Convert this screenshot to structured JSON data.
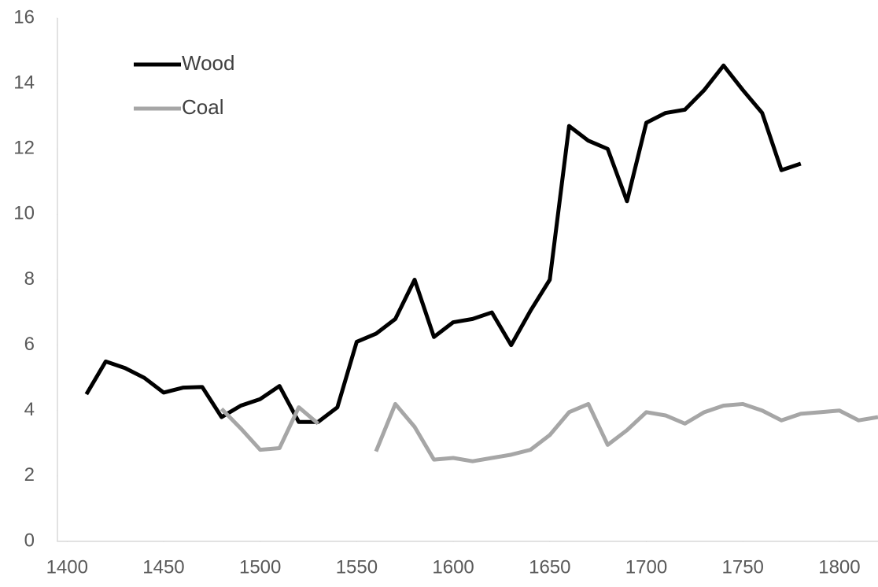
{
  "chart_data": {
    "type": "line",
    "x": [
      1410,
      1420,
      1430,
      1440,
      1450,
      1460,
      1470,
      1480,
      1490,
      1500,
      1510,
      1520,
      1530,
      1540,
      1550,
      1560,
      1570,
      1580,
      1590,
      1600,
      1610,
      1620,
      1630,
      1640,
      1650,
      1660,
      1670,
      1680,
      1690,
      1700,
      1710,
      1720,
      1730,
      1740,
      1750,
      1760,
      1770,
      1780,
      1790,
      1800,
      1810,
      1820
    ],
    "series": [
      {
        "name": "Wood",
        "color": "#000000",
        "values": [
          4.5,
          5.5,
          5.3,
          5.0,
          4.55,
          4.7,
          4.72,
          3.8,
          4.15,
          4.35,
          4.75,
          3.65,
          3.65,
          4.1,
          6.1,
          6.35,
          6.8,
          8.0,
          6.25,
          6.7,
          6.8,
          7.0,
          6.0,
          7.05,
          8.0,
          12.7,
          12.25,
          12.0,
          10.4,
          12.8,
          13.1,
          13.2,
          13.8,
          14.55,
          13.8,
          13.1,
          11.35,
          11.55,
          null,
          null,
          null,
          null
        ]
      },
      {
        "name": "Coal",
        "color": "#a6a6a6",
        "values": [
          null,
          null,
          null,
          null,
          null,
          null,
          null,
          4.05,
          3.45,
          2.8,
          2.85,
          4.1,
          3.6,
          null,
          null,
          2.75,
          4.2,
          3.5,
          2.5,
          2.55,
          2.45,
          2.55,
          2.65,
          2.8,
          3.25,
          3.95,
          4.2,
          2.95,
          3.4,
          3.95,
          3.85,
          3.6,
          3.95,
          4.15,
          4.2,
          4.0,
          3.7,
          3.9,
          3.95,
          4.0,
          3.7,
          3.8
        ]
      }
    ],
    "xlim": [
      1395,
      1820
    ],
    "xticks": [
      1400,
      1450,
      1500,
      1550,
      1600,
      1650,
      1700,
      1750,
      1800
    ],
    "ylim": [
      0,
      16
    ],
    "yticks": [
      0,
      2,
      4,
      6,
      8,
      10,
      12,
      14,
      16
    ],
    "grid": false,
    "legend": "upper left"
  }
}
